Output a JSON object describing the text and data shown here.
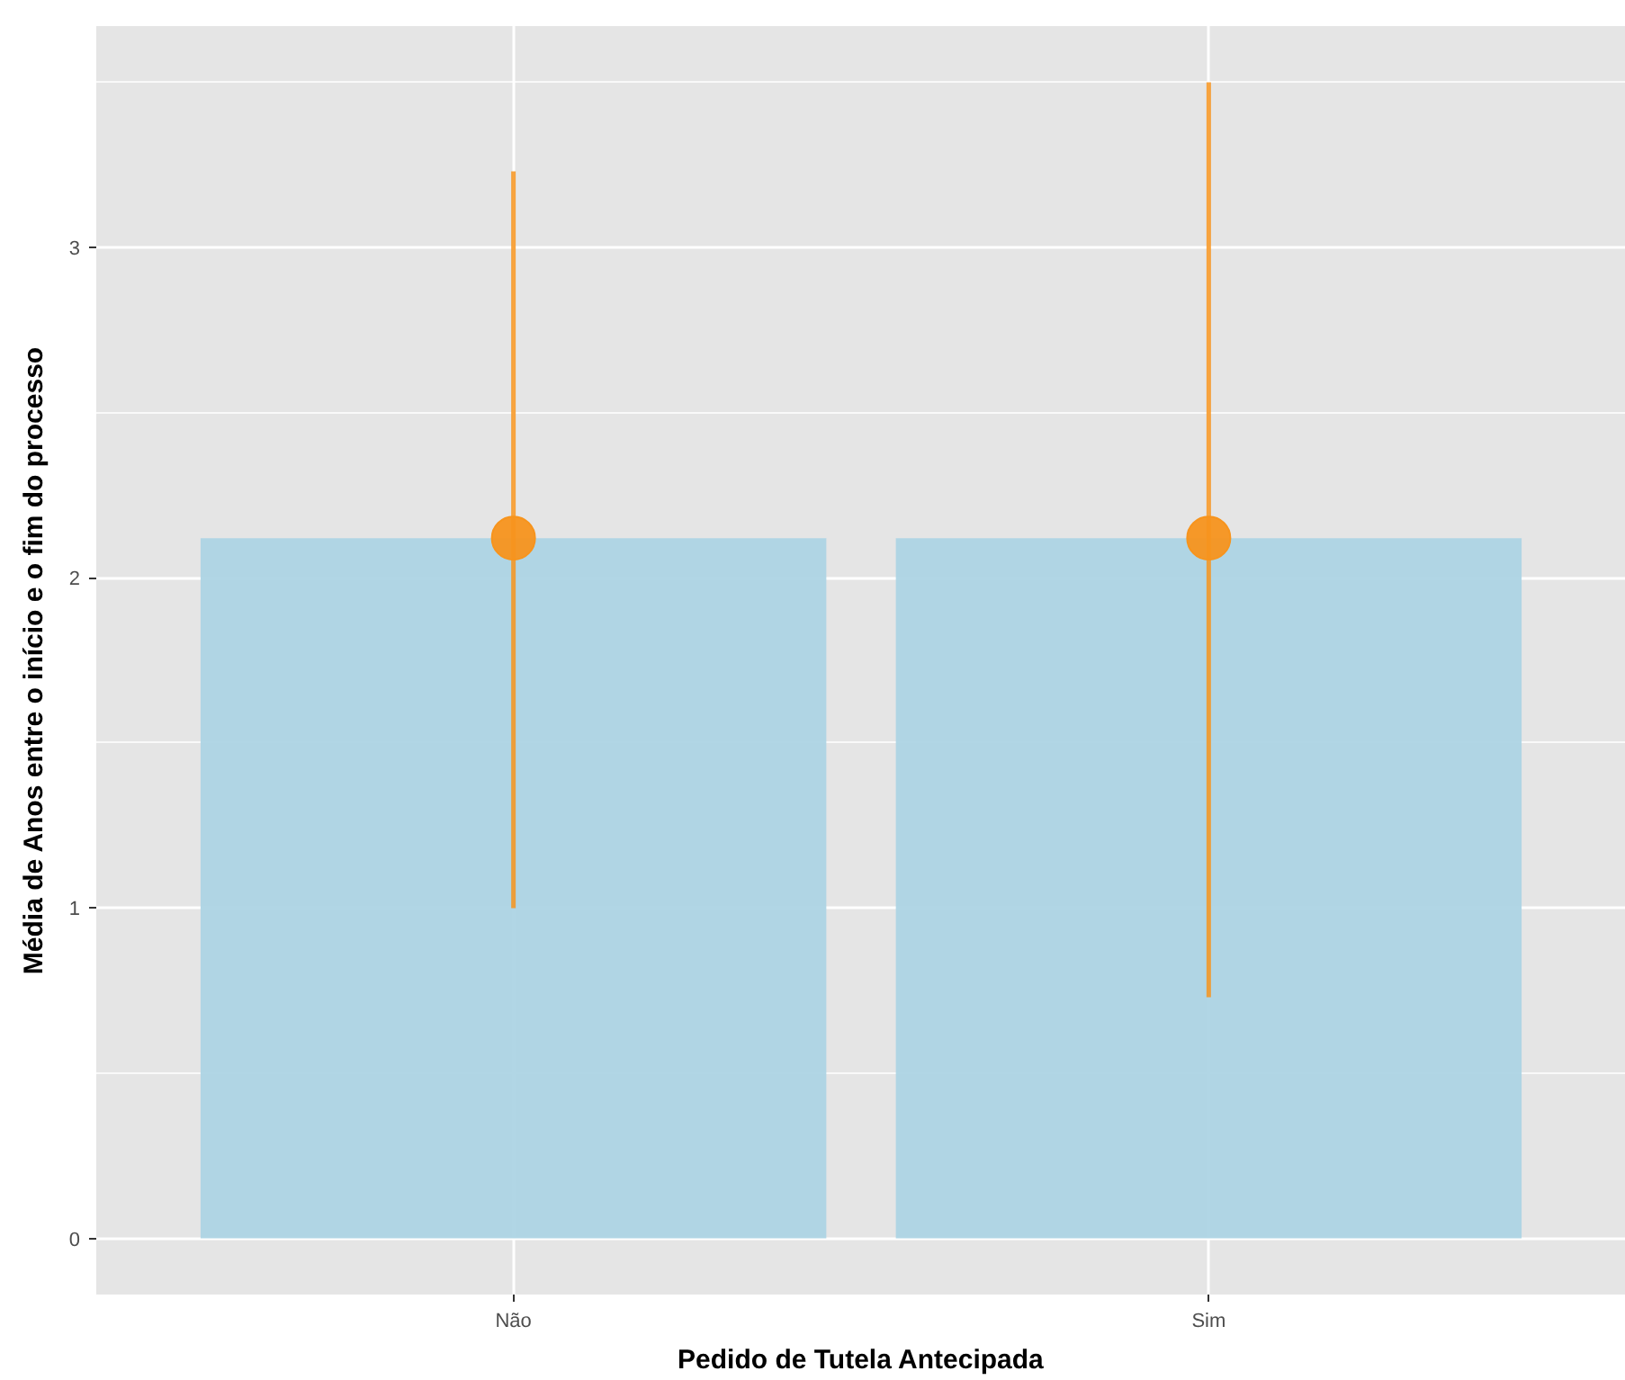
{
  "chart_data": {
    "type": "bar",
    "xlabel": "Pedido de Tutela Antecipada",
    "ylabel": "Média de Anos entre o início e o fim do processo",
    "categories": [
      "Não",
      "Sim"
    ],
    "series": [
      {
        "color": "#add4e4",
        "values": [
          2.12,
          2.12
        ]
      },
      {
        "type": "scatter",
        "color": "#f7941d",
        "x": [
          "Não",
          "Sim"
        ],
        "values": [
          2.12,
          2.12
        ],
        "errors": [
          [
            1.0,
            3.23
          ],
          [
            0.73,
            3.5
          ]
        ]
      }
    ],
    "ylim": [
      -0.17,
      3.67
    ],
    "yticks": [
      0,
      1,
      2,
      3
    ],
    "grid": true,
    "marker": "circle"
  }
}
